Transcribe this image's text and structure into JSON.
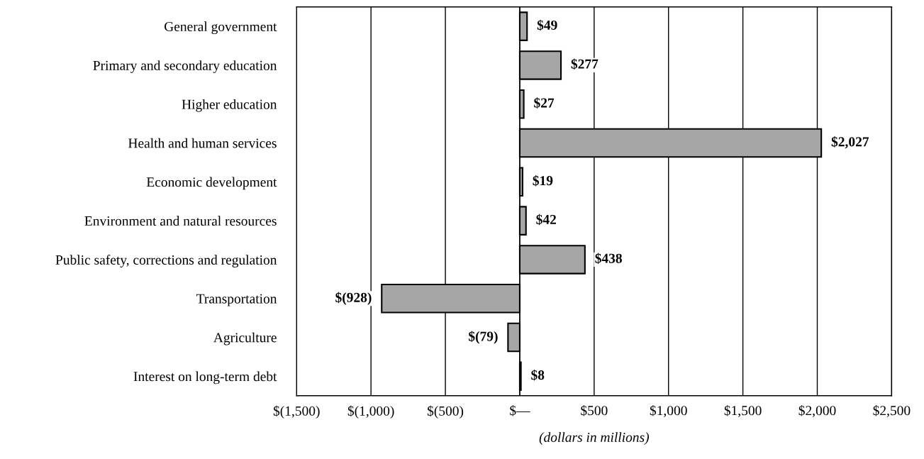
{
  "chart_data": {
    "type": "bar",
    "orientation": "horizontal",
    "xlabel": "(dollars in millions)",
    "categories": [
      "General government",
      "Primary and secondary education",
      "Higher education",
      "Health and human services",
      "Economic development",
      "Environment and natural resources",
      "Public safety, corrections and regulation",
      "Transportation",
      "Agriculture",
      "Interest on long-term debt"
    ],
    "values": [
      49,
      277,
      27,
      2027,
      19,
      42,
      438,
      -928,
      -79,
      8
    ],
    "value_labels": [
      "$49",
      "$277",
      "$27",
      "$2,027",
      "$19",
      "$42",
      "$438",
      "$(928)",
      "$(79)",
      "$8"
    ],
    "color": "#a6a6a6",
    "xlim": [
      -1500,
      2500
    ],
    "xticks": [
      {
        "value": -1500,
        "label": "$(1,500)"
      },
      {
        "value": -1000,
        "label": "$(1,000)"
      },
      {
        "value": -500,
        "label": "$(500)"
      },
      {
        "value": 0,
        "label": "$—"
      },
      {
        "value": 500,
        "label": "$500"
      },
      {
        "value": 1000,
        "label": "$1,000"
      },
      {
        "value": 1500,
        "label": "$1,500"
      },
      {
        "value": 2000,
        "label": "$2,000"
      },
      {
        "value": 2500,
        "label": "$2,500"
      }
    ],
    "grid": "x",
    "legend": false
  }
}
